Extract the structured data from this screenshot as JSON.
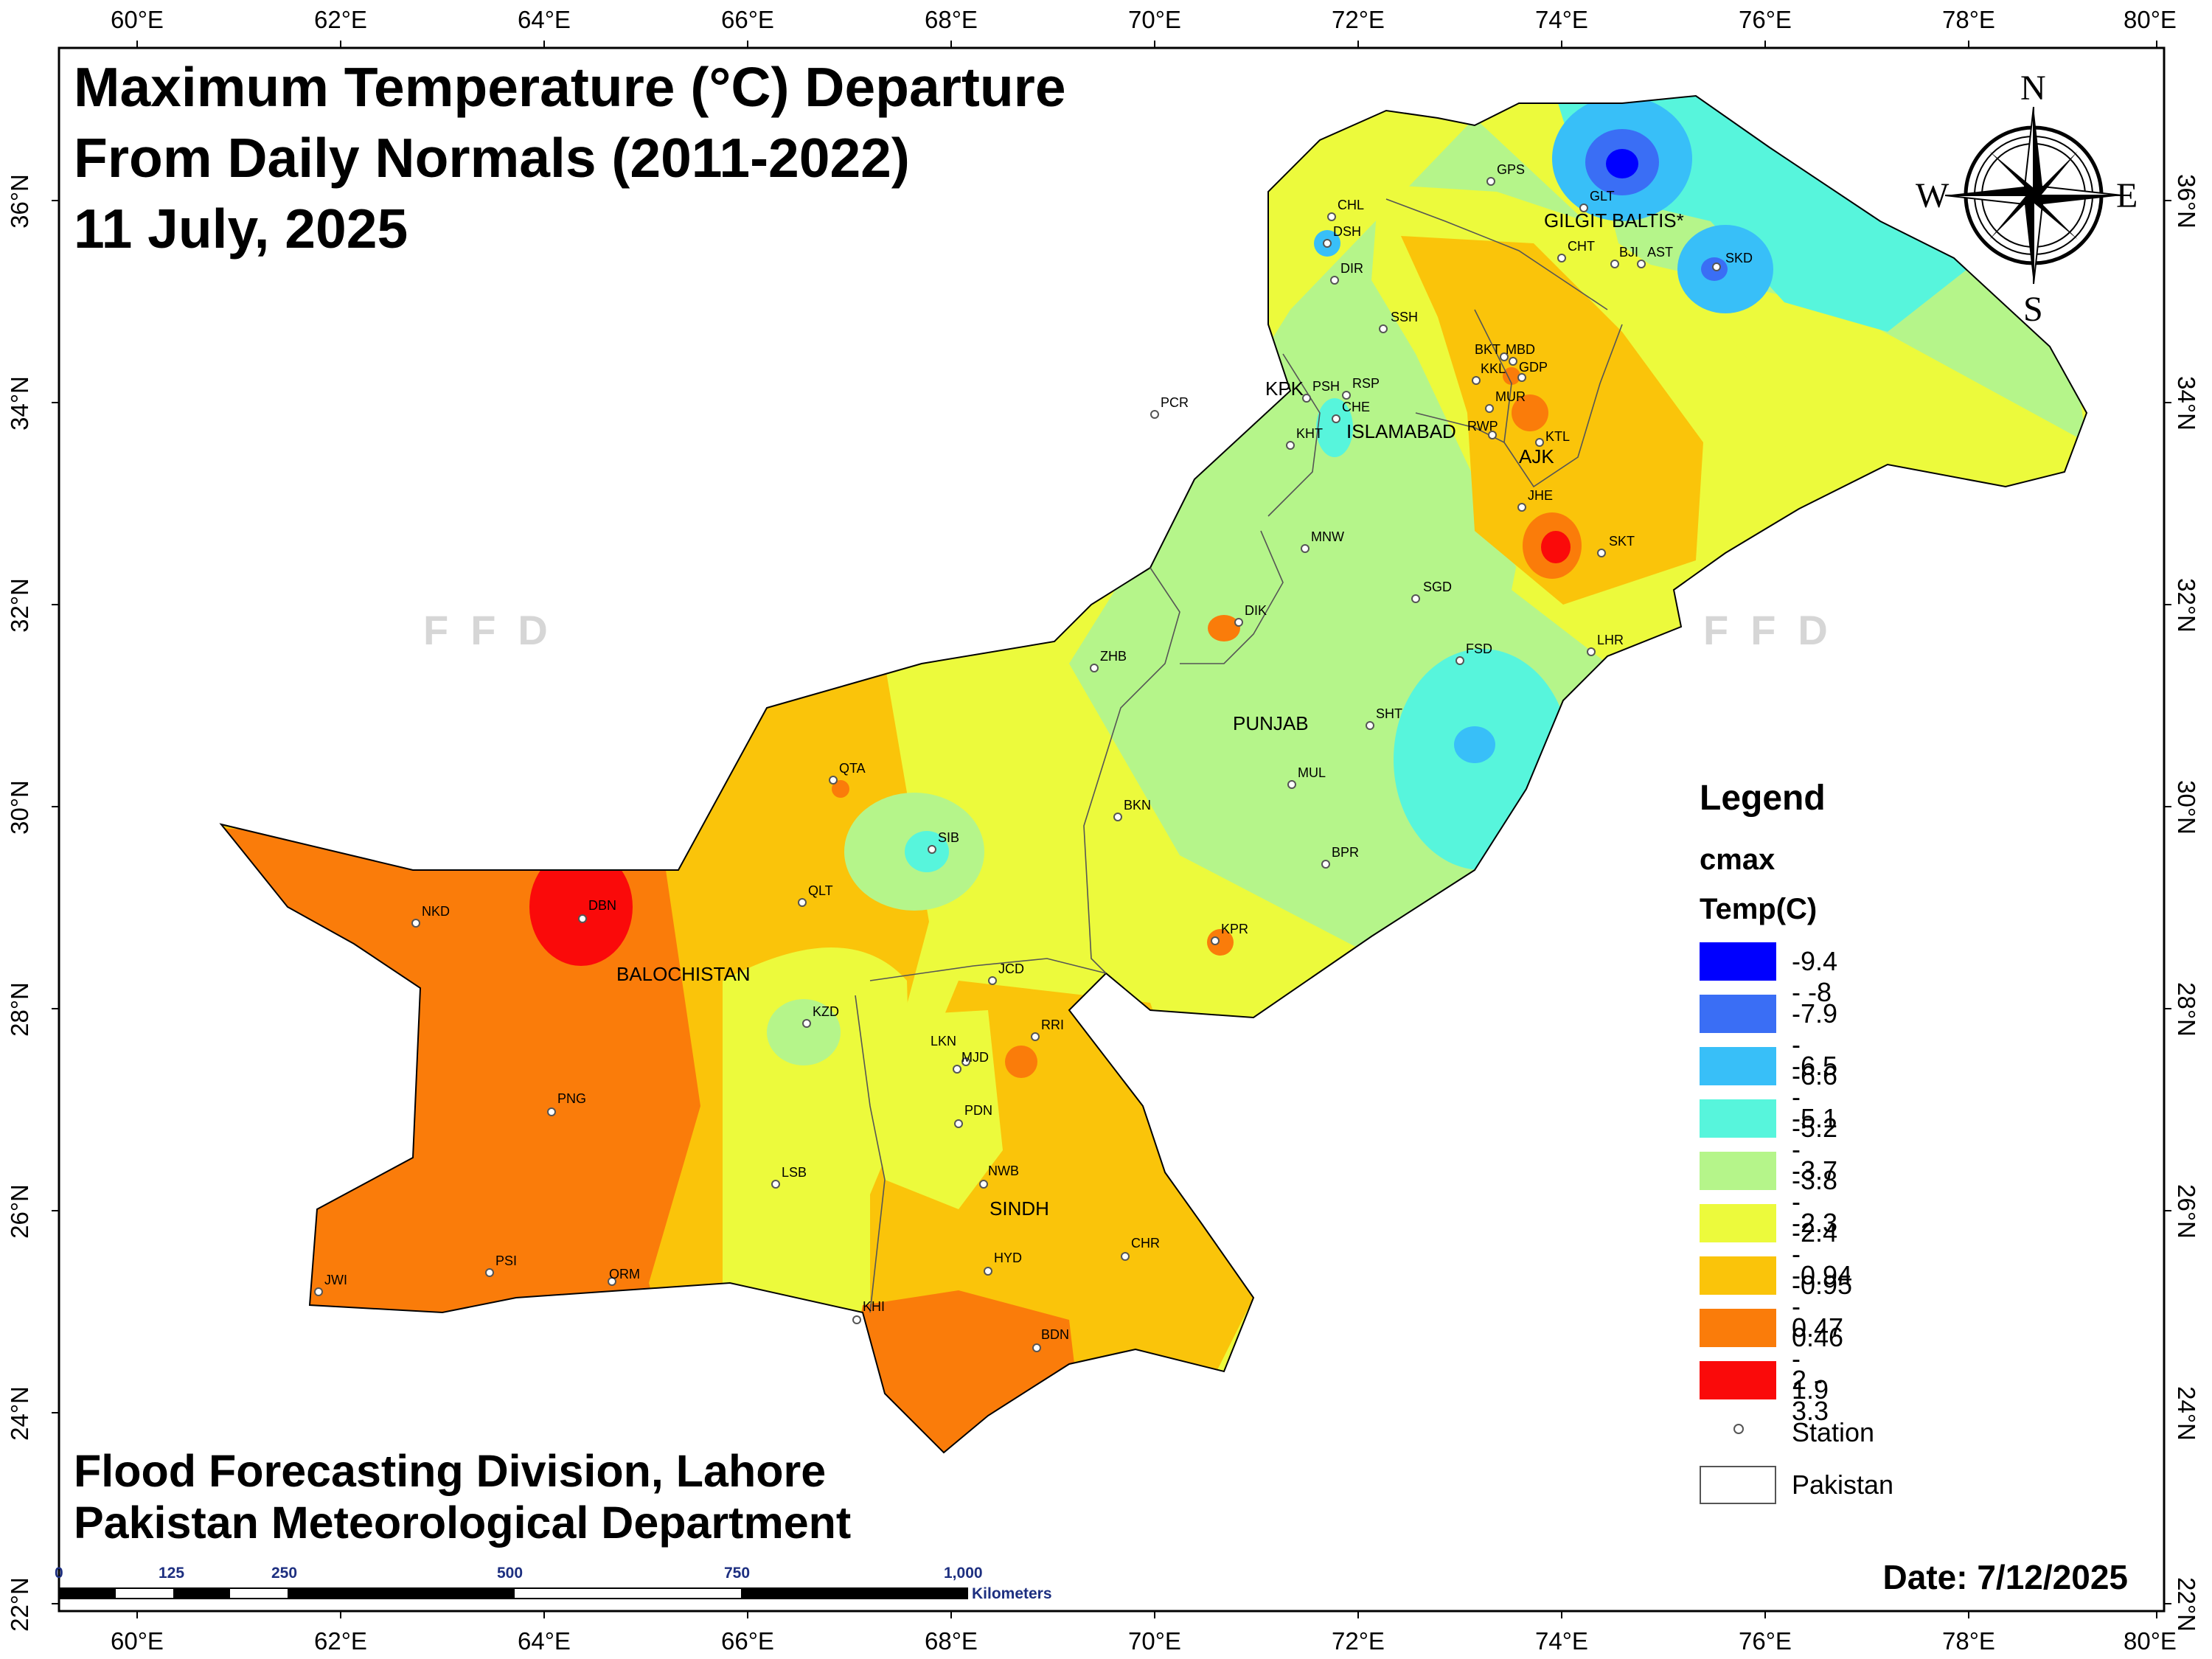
{
  "title": {
    "line1": "Maximum Temperature (°C) Departure",
    "line2": "From Daily Normals (2011-2022)",
    "line3": "11 July, 2025"
  },
  "credits": {
    "line1": "Flood Forecasting Division, Lahore",
    "line2": "Pakistan Meteorological Department"
  },
  "date": "Date: 7/12/2025",
  "watermark": "FFD",
  "compass": {
    "n": "N",
    "s": "S",
    "e": "E",
    "w": "W"
  },
  "axes": {
    "lon_labels": [
      "60°E",
      "62°E",
      "64°E",
      "66°E",
      "68°E",
      "70°E",
      "72°E",
      "74°E",
      "76°E",
      "78°E",
      "80°E"
    ],
    "lat_labels": [
      "36°N",
      "34°N",
      "32°N",
      "30°N",
      "28°N",
      "26°N",
      "24°N",
      "22°N"
    ]
  },
  "scale_bar": {
    "ticks": [
      "0",
      "125",
      "250",
      "500",
      "750",
      "1,000"
    ],
    "unit": "Kilometers"
  },
  "legend": {
    "title": "Legend",
    "field": "cmax",
    "units": "Temp(C)",
    "classes": [
      {
        "label": "-9.4 - -8",
        "color": "#0000ff"
      },
      {
        "label": "-7.9 - -6.6",
        "color": "#3a6ef5"
      },
      {
        "label": "-6.5 - -5.2",
        "color": "#38bff8"
      },
      {
        "label": "-5.1 - -3.8",
        "color": "#57f5dc"
      },
      {
        "label": "-3.7 - -2.4",
        "color": "#b5f58a"
      },
      {
        "label": "-2.3 - -0.95",
        "color": "#ecfa3c"
      },
      {
        "label": "-0.94 - 0.46",
        "color": "#fac40a"
      },
      {
        "label": "0.47 - 1.9",
        "color": "#fa7c0a"
      },
      {
        "label": "2 - 3.3",
        "color": "#fa0a0a"
      }
    ],
    "station_label": "Station",
    "boundary_label": "Pakistan"
  },
  "regions": [
    "GILGIT BALTIS*",
    "KPK",
    "ISLAMABAD",
    "AJK",
    "PUNJAB",
    "BALOCHISTAN",
    "SINDH"
  ],
  "stations": [
    "GPS",
    "GLT",
    "CHL",
    "DSH",
    "DIR",
    "CHT",
    "BJI",
    "AST",
    "SKD",
    "SSH",
    "BKT",
    "MBD",
    "GDP",
    "KKL",
    "PSH",
    "RSP",
    "MUR",
    "CHE",
    "PCR",
    "KHT",
    "RWP",
    "KTL",
    "JHE",
    "MNW",
    "SKT",
    "SGD",
    "DIK",
    "LHR",
    "FSD",
    "ZHB",
    "SHT",
    "QTA",
    "MUL",
    "BKN",
    "SIB",
    "BPR",
    "QLT",
    "NKD",
    "DBN",
    "KPR",
    "JCD",
    "KZD",
    "RRI",
    "LKN",
    "MJD",
    "PNG",
    "PDN",
    "NWB",
    "LSB",
    "CHR",
    "HYD",
    "PSI",
    "ORM",
    "JWI",
    "KHI",
    "BDN"
  ]
}
